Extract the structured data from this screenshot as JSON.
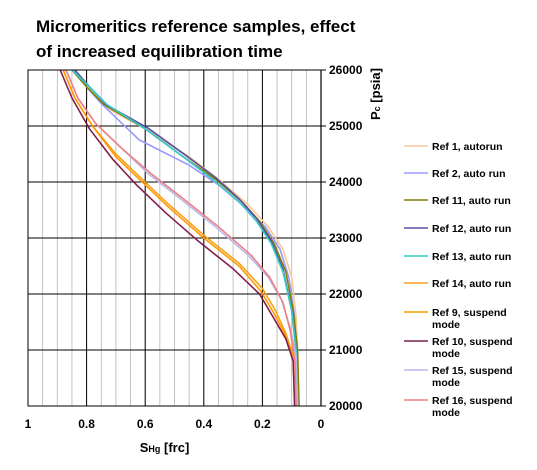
{
  "chart_data": {
    "type": "line",
    "title": "Micromeritics reference samples, effect of increased equilibration time",
    "xlabel_main": "S",
    "xlabel_sub": "Hg",
    "xlabel_unit": "[frc]",
    "ylabel_main": "P",
    "ylabel_sub": "c",
    "ylabel_unit": "[psia]",
    "xlim": [
      1,
      0
    ],
    "ylim": [
      20000,
      26000
    ],
    "x_ticks": [
      1,
      0.8,
      0.6,
      0.4,
      0.2,
      0
    ],
    "x_tick_labels": [
      "1",
      "0.8",
      "0.6",
      "0.4",
      "0.2",
      "0"
    ],
    "y_ticks": [
      20000,
      21000,
      22000,
      23000,
      24000,
      25000,
      26000
    ],
    "y_tick_labels": [
      "20000",
      "21000",
      "22000",
      "23000",
      "24000",
      "25000",
      "26000"
    ],
    "x_grid_minor_step": 0.05,
    "grid": true,
    "legend_position": "right",
    "series": [
      {
        "name": "Ref 1, autorun",
        "color": "#F9C99A",
        "points": [
          [
            0.85,
            26000
          ],
          [
            0.8,
            25700
          ],
          [
            0.74,
            25350
          ],
          [
            0.6,
            24950
          ],
          [
            0.45,
            24450
          ],
          [
            0.35,
            24050
          ],
          [
            0.25,
            23600
          ],
          [
            0.18,
            23200
          ],
          [
            0.13,
            22800
          ],
          [
            0.1,
            22300
          ],
          [
            0.085,
            21600
          ],
          [
            0.08,
            21000
          ],
          [
            0.075,
            20000
          ]
        ]
      },
      {
        "name": "Ref 2, auto run",
        "color": "#9999FF",
        "points": [
          [
            0.84,
            26000
          ],
          [
            0.8,
            25700
          ],
          [
            0.75,
            25400
          ],
          [
            0.62,
            24750
          ],
          [
            0.45,
            24300
          ],
          [
            0.35,
            23950
          ],
          [
            0.26,
            23550
          ],
          [
            0.19,
            23200
          ],
          [
            0.14,
            22800
          ],
          [
            0.11,
            22300
          ],
          [
            0.09,
            21600
          ],
          [
            0.085,
            21000
          ],
          [
            0.08,
            20000
          ]
        ]
      },
      {
        "name": "Ref 11, auto run",
        "color": "#7F7F00",
        "points": [
          [
            0.85,
            26000
          ],
          [
            0.8,
            25700
          ],
          [
            0.74,
            25380
          ],
          [
            0.6,
            24950
          ],
          [
            0.47,
            24450
          ],
          [
            0.36,
            24050
          ],
          [
            0.27,
            23650
          ],
          [
            0.21,
            23300
          ],
          [
            0.16,
            22900
          ],
          [
            0.12,
            22400
          ],
          [
            0.095,
            21700
          ],
          [
            0.08,
            21000
          ],
          [
            0.075,
            20000
          ]
        ]
      },
      {
        "name": "Ref 12, auto run",
        "color": "#5C4F9F",
        "points": [
          [
            0.84,
            26000
          ],
          [
            0.79,
            25700
          ],
          [
            0.73,
            25370
          ],
          [
            0.59,
            24960
          ],
          [
            0.46,
            24470
          ],
          [
            0.36,
            24080
          ],
          [
            0.28,
            23700
          ],
          [
            0.22,
            23350
          ],
          [
            0.17,
            22950
          ],
          [
            0.13,
            22450
          ],
          [
            0.1,
            21700
          ],
          [
            0.085,
            21000
          ],
          [
            0.08,
            20000
          ]
        ]
      },
      {
        "name": "Ref 13, auto run",
        "color": "#33CCCC",
        "points": [
          [
            0.85,
            26000
          ],
          [
            0.79,
            25700
          ],
          [
            0.73,
            25380
          ],
          [
            0.6,
            24950
          ],
          [
            0.47,
            24450
          ],
          [
            0.37,
            24050
          ],
          [
            0.28,
            23650
          ],
          [
            0.22,
            23300
          ],
          [
            0.17,
            22900
          ],
          [
            0.13,
            22400
          ],
          [
            0.1,
            21700
          ],
          [
            0.085,
            21000
          ],
          [
            0.08,
            20000
          ]
        ]
      },
      {
        "name": "Ref 14, auto run",
        "color": "#F7A11A",
        "points": [
          [
            0.88,
            26000
          ],
          [
            0.84,
            25500
          ],
          [
            0.78,
            25000
          ],
          [
            0.7,
            24500
          ],
          [
            0.62,
            24100
          ],
          [
            0.52,
            23600
          ],
          [
            0.4,
            23050
          ],
          [
            0.28,
            22550
          ],
          [
            0.2,
            22100
          ],
          [
            0.155,
            21700
          ],
          [
            0.12,
            21300
          ],
          [
            0.095,
            20900
          ],
          [
            0.09,
            20000
          ]
        ]
      },
      {
        "name": "Ref 9, suspend mode",
        "color": "#FF9900",
        "points": [
          [
            0.88,
            26000
          ],
          [
            0.84,
            25500
          ],
          [
            0.78,
            25000
          ],
          [
            0.7,
            24450
          ],
          [
            0.62,
            24050
          ],
          [
            0.52,
            23550
          ],
          [
            0.4,
            23000
          ],
          [
            0.28,
            22500
          ],
          [
            0.205,
            22050
          ],
          [
            0.16,
            21650
          ],
          [
            0.12,
            21250
          ],
          [
            0.095,
            20900
          ],
          [
            0.09,
            20000
          ]
        ]
      },
      {
        "name": "Ref 10, suspend mode",
        "color": "#7F1F4F",
        "points": [
          [
            0.89,
            26000
          ],
          [
            0.85,
            25500
          ],
          [
            0.79,
            24950
          ],
          [
            0.71,
            24400
          ],
          [
            0.63,
            23950
          ],
          [
            0.53,
            23450
          ],
          [
            0.42,
            22950
          ],
          [
            0.3,
            22450
          ],
          [
            0.21,
            22000
          ],
          [
            0.165,
            21600
          ],
          [
            0.12,
            21200
          ],
          [
            0.095,
            20800
          ],
          [
            0.09,
            20000
          ]
        ]
      },
      {
        "name": "Ref 15, suspend mode",
        "color": "#B7B7EE",
        "points": [
          [
            0.87,
            26000
          ],
          [
            0.83,
            25500
          ],
          [
            0.77,
            25050
          ],
          [
            0.68,
            24600
          ],
          [
            0.59,
            24150
          ],
          [
            0.48,
            23700
          ],
          [
            0.36,
            23200
          ],
          [
            0.25,
            22700
          ],
          [
            0.18,
            22300
          ],
          [
            0.135,
            21900
          ],
          [
            0.105,
            21400
          ],
          [
            0.085,
            20900
          ],
          [
            0.08,
            20000
          ]
        ]
      },
      {
        "name": "Ref 16, suspend mode",
        "color": "#F08080",
        "points": [
          [
            0.87,
            26000
          ],
          [
            0.83,
            25500
          ],
          [
            0.77,
            25050
          ],
          [
            0.68,
            24600
          ],
          [
            0.58,
            24150
          ],
          [
            0.47,
            23700
          ],
          [
            0.35,
            23200
          ],
          [
            0.24,
            22700
          ],
          [
            0.175,
            22300
          ],
          [
            0.13,
            21850
          ],
          [
            0.105,
            21350
          ],
          [
            0.09,
            20850
          ],
          [
            0.085,
            20000
          ]
        ]
      }
    ]
  }
}
